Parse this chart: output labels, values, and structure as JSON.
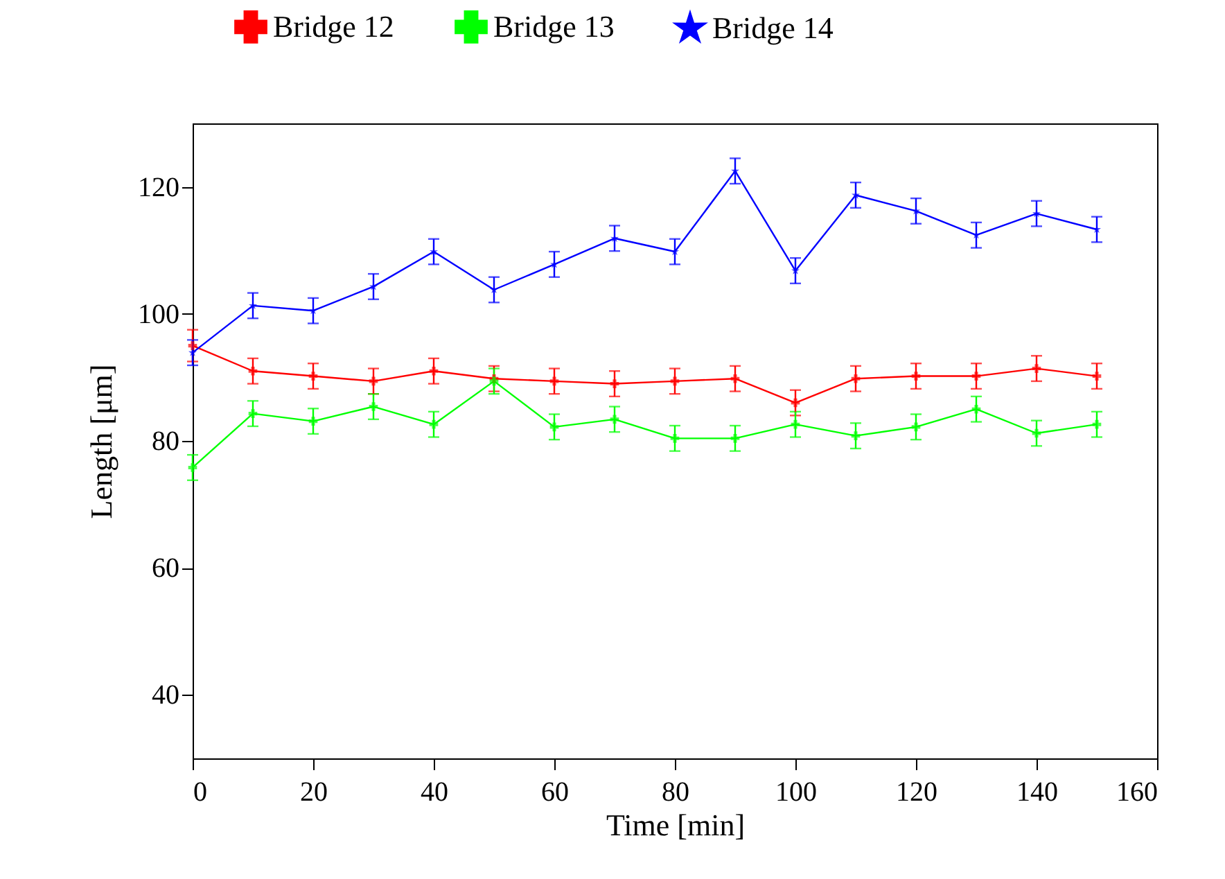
{
  "chart_data": {
    "type": "line",
    "xlabel": "Time [min]",
    "ylabel": "Length [μm]",
    "x": [
      0,
      10,
      20,
      30,
      40,
      50,
      60,
      70,
      80,
      90,
      100,
      110,
      120,
      130,
      140,
      150
    ],
    "xlim": [
      0,
      160
    ],
    "xticks": [
      0,
      20,
      40,
      60,
      80,
      100,
      120,
      140,
      160
    ],
    "ylim": [
      30,
      130
    ],
    "yticks": [
      40,
      60,
      80,
      100,
      120
    ],
    "grid": false,
    "legend": "top",
    "line_style": "solid",
    "series": [
      {
        "name": "Bridge 12",
        "color": "#ff0000",
        "marker": "cross",
        "values": [
          95,
          91,
          90.2,
          89.4,
          91,
          89.8,
          89.4,
          89,
          89.4,
          89.8,
          86,
          89.8,
          90.2,
          90.2,
          91.4,
          90.2
        ],
        "errors": [
          2.5,
          2,
          2,
          2,
          2,
          2,
          2,
          2,
          2,
          2,
          2,
          2,
          2,
          2,
          2,
          2
        ]
      },
      {
        "name": "Bridge 13",
        "color": "#00ff00",
        "marker": "cross",
        "values": [
          75.8,
          84.3,
          83.1,
          85.4,
          82.6,
          89.4,
          82.2,
          83.4,
          80.4,
          80.4,
          82.6,
          80.8,
          82.2,
          85,
          81.2,
          82.6
        ],
        "errors": [
          2,
          2,
          2,
          2,
          2,
          2,
          2,
          2,
          2,
          2,
          2,
          2,
          2,
          2,
          2,
          2
        ]
      },
      {
        "name": "Bridge 14",
        "color": "#0000ff",
        "marker": "star",
        "values": [
          93.9,
          101.3,
          100.5,
          104.3,
          109.8,
          103.8,
          107.8,
          111.9,
          109.8,
          122.5,
          106.8,
          118.7,
          116.2,
          112.4,
          115.8,
          113.3
        ],
        "errors": [
          2,
          2,
          2,
          2,
          2,
          2,
          2,
          2,
          2,
          2,
          2,
          2,
          2,
          2,
          2,
          2
        ]
      }
    ]
  }
}
